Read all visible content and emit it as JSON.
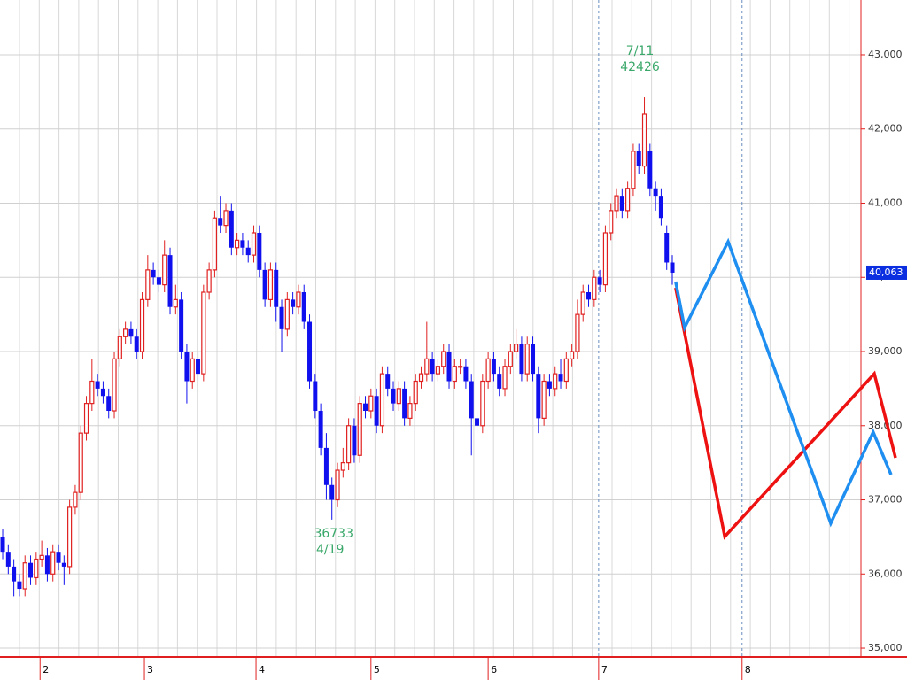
{
  "chart_data": {
    "type": "candlestick",
    "up_color": "#e02020",
    "down_color": "#1010ee",
    "grid": true,
    "xlim": [
      -0.48,
      162.06
    ],
    "ylim": [
      34881,
      43740
    ],
    "yticks": [
      {
        "value": 35000,
        "label": "35,000"
      },
      {
        "value": 36000,
        "label": "36,000"
      },
      {
        "value": 37000,
        "label": "37,000"
      },
      {
        "value": 38000,
        "label": "38,000"
      },
      {
        "value": 39000,
        "label": "39,000"
      },
      {
        "value": 40000,
        "label": "40,000"
      },
      {
        "value": 41000,
        "label": "41,000"
      },
      {
        "value": 42000,
        "label": "42,000"
      },
      {
        "value": 43000,
        "label": "43,000"
      }
    ],
    "xticks": [
      {
        "value": 6.7,
        "label": "2"
      },
      {
        "value": 25.4,
        "label": "3"
      },
      {
        "value": 45.4,
        "label": "4"
      },
      {
        "value": 66,
        "label": "5"
      },
      {
        "value": 87,
        "label": "6"
      },
      {
        "value": 106.8,
        "label": "7"
      },
      {
        "value": 132.5,
        "label": "8"
      }
    ],
    "dashed_xticks": [
      5,
      6
    ],
    "open": [
      36500,
      36300,
      36100,
      35900,
      35800,
      36150,
      35950,
      36200,
      36250,
      36000,
      36300,
      36150,
      36100,
      36900,
      37100,
      37900,
      38300,
      38600,
      38500,
      38400,
      38200,
      38900,
      39200,
      39300,
      39200,
      39000,
      39700,
      40100,
      40000,
      39900,
      40300,
      39600,
      39700,
      39000,
      38600,
      38900,
      38700,
      39800,
      40100,
      40800,
      40700,
      40900,
      40400,
      40500,
      40400,
      40300,
      40600,
      40100,
      39700,
      40100,
      39600,
      39300,
      39700,
      39600,
      39800,
      39400,
      38600,
      38200,
      37700,
      37200,
      37000,
      37400,
      37500,
      38000,
      37600,
      38300,
      38200,
      38400,
      38000,
      38700,
      38500,
      38300,
      38500,
      38100,
      38300,
      38600,
      38700,
      38900,
      38700,
      38800,
      39000,
      38600,
      38800,
      38800,
      38600,
      38100,
      38000,
      38600,
      38900,
      38700,
      38500,
      38800,
      39000,
      39100,
      38700,
      39100,
      38700,
      38100,
      38600,
      38500,
      38700,
      38600,
      38900,
      39000,
      39500,
      39800,
      39700,
      40000,
      39900,
      40600,
      40900,
      41100,
      40900,
      41200,
      41700,
      41500,
      41700,
      41200,
      41100,
      40600,
      40200
    ],
    "high": [
      36600,
      36400,
      36200,
      36000,
      36250,
      36250,
      36300,
      36450,
      36350,
      36400,
      36400,
      36250,
      37000,
      37200,
      38000,
      38400,
      38900,
      38700,
      38600,
      38500,
      39000,
      39300,
      39400,
      39400,
      39300,
      39800,
      40300,
      40200,
      40100,
      40500,
      40400,
      39900,
      39800,
      39100,
      39000,
      39000,
      39900,
      40200,
      40900,
      41100,
      41000,
      41000,
      40600,
      40600,
      40500,
      40700,
      40700,
      40200,
      40200,
      40200,
      39700,
      39800,
      39800,
      39900,
      39900,
      39500,
      38700,
      38300,
      37900,
      37300,
      37500,
      37700,
      38100,
      38100,
      38400,
      38400,
      38500,
      38500,
      38800,
      38800,
      38600,
      38600,
      38600,
      38400,
      38700,
      38800,
      39400,
      39000,
      38900,
      39100,
      39100,
      38900,
      38900,
      38900,
      38700,
      38200,
      38700,
      39000,
      39000,
      38800,
      38900,
      39100,
      39300,
      39200,
      39200,
      39200,
      38800,
      38700,
      38700,
      38800,
      38900,
      39000,
      39100,
      39700,
      39900,
      39900,
      40100,
      40100,
      40700,
      41000,
      41200,
      41200,
      41300,
      41800,
      41800,
      42426,
      41800,
      41300,
      41200,
      40700,
      40300
    ],
    "low": [
      36200,
      36000,
      35700,
      35700,
      35700,
      35850,
      35850,
      36100,
      35900,
      35900,
      36050,
      35850,
      36000,
      36800,
      37000,
      37800,
      38200,
      38400,
      38300,
      38100,
      38100,
      38800,
      39100,
      39100,
      38900,
      38900,
      39600,
      39900,
      39800,
      39800,
      39500,
      39500,
      38900,
      38300,
      38500,
      38600,
      38600,
      39700,
      40000,
      40600,
      40600,
      40300,
      40300,
      40300,
      40200,
      40200,
      40000,
      39600,
      39600,
      39400,
      39000,
      39200,
      39500,
      39500,
      39300,
      38500,
      38100,
      37600,
      37000,
      36733,
      36900,
      37300,
      37400,
      37500,
      37500,
      38100,
      38100,
      37900,
      37900,
      38400,
      38200,
      38200,
      38000,
      38000,
      38200,
      38500,
      38600,
      38600,
      38600,
      38700,
      38500,
      38500,
      38700,
      38500,
      37600,
      37900,
      37900,
      38500,
      38600,
      38400,
      38400,
      38700,
      38900,
      38600,
      38600,
      38600,
      37900,
      38000,
      38400,
      38400,
      38500,
      38500,
      38800,
      38900,
      39400,
      39600,
      39600,
      39800,
      39800,
      40500,
      40800,
      40800,
      40800,
      41100,
      41400,
      41400,
      41100,
      40900,
      40700,
      40100,
      39900
    ],
    "close": [
      36300,
      36100,
      35900,
      35800,
      36150,
      35950,
      36200,
      36250,
      36000,
      36300,
      36150,
      36100,
      36900,
      37100,
      37900,
      38300,
      38600,
      38500,
      38400,
      38200,
      38900,
      39200,
      39300,
      39200,
      39000,
      39700,
      40100,
      40000,
      39900,
      40300,
      39600,
      39700,
      39000,
      38600,
      38900,
      38700,
      39800,
      40100,
      40800,
      40700,
      40900,
      40400,
      40500,
      40400,
      40300,
      40600,
      40100,
      39700,
      40100,
      39600,
      39300,
      39700,
      39600,
      39800,
      39400,
      38600,
      38200,
      37700,
      37200,
      37000,
      37400,
      37500,
      38000,
      37600,
      38300,
      38200,
      38400,
      38000,
      38700,
      38500,
      38300,
      38500,
      38100,
      38300,
      38600,
      38700,
      38900,
      38700,
      38800,
      39000,
      38600,
      38800,
      38800,
      38600,
      38100,
      38000,
      38600,
      38900,
      38700,
      38500,
      38800,
      39000,
      39100,
      38700,
      39100,
      38700,
      38100,
      38600,
      38500,
      38700,
      38600,
      38900,
      39000,
      39500,
      39800,
      39700,
      40000,
      39900,
      40600,
      40900,
      41100,
      40900,
      41200,
      41700,
      41500,
      42200,
      41200,
      41100,
      40800,
      40200,
      40063
    ],
    "lines": [
      {
        "color": "#ee1111",
        "x": [
          120.6,
          129.4,
          156.2,
          160
        ],
        "values": [
          39860,
          36504,
          38701,
          37567
        ]
      },
      {
        "color": "#1e8ef0",
        "x": [
          120.6,
          122.2,
          130,
          148.4,
          156,
          159.2
        ],
        "values": [
          39943,
          39322,
          40481,
          36684,
          37913,
          37340
        ]
      }
    ],
    "last_price": {
      "value": 40063,
      "label": "40,063"
    },
    "annotations": [
      {
        "date": "7/11",
        "value": 42426,
        "index": 115,
        "position": "above"
      },
      {
        "date": "4/19",
        "value": 36733,
        "index": 59,
        "position": "below"
      }
    ]
  }
}
